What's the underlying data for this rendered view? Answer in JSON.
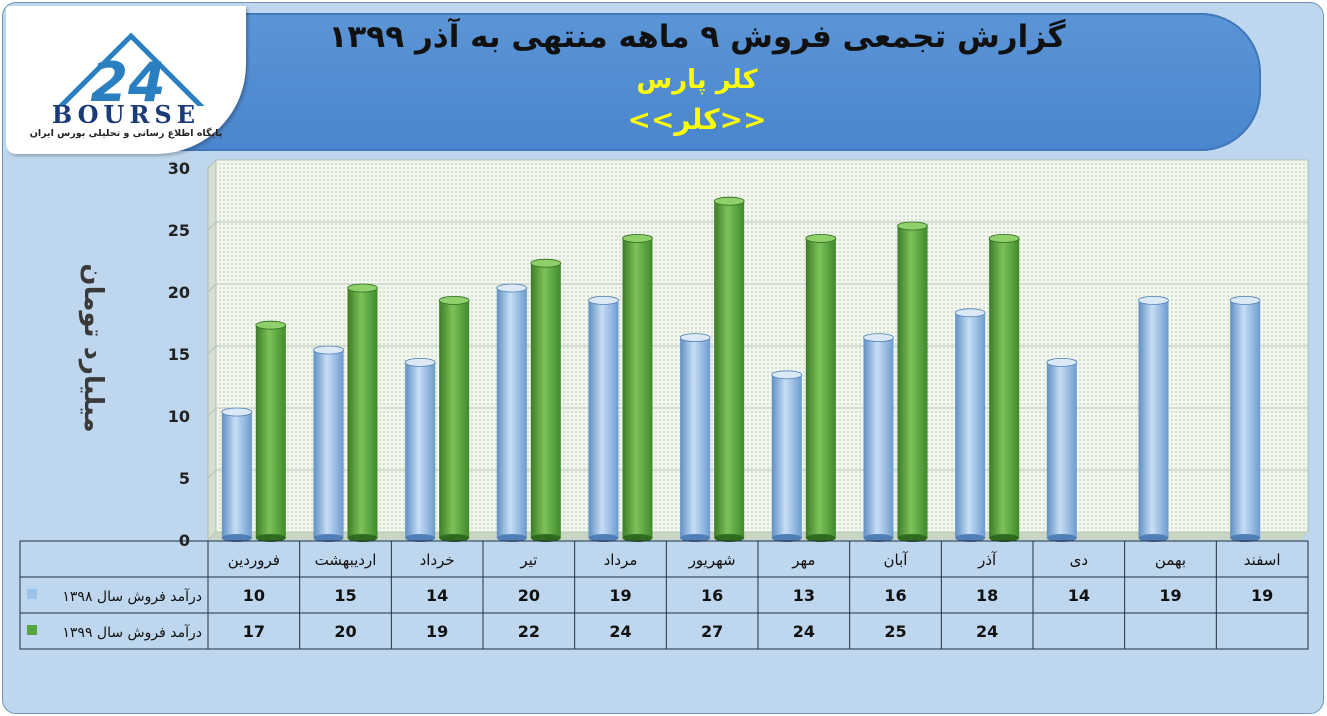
{
  "header": {
    "title": "گزارش تجمعی فروش ۹ ماهه منتهی به آذر ۱۳۹۹",
    "company": "کلر پارس",
    "symbol": "<<کلر>>"
  },
  "logo": {
    "word": "BOURSE",
    "mark": "24",
    "subtitle": "پایگاه اطلاع رسانی و تحلیلی بورس ایران"
  },
  "colors": {
    "series_1398": "#9cc3ea",
    "series_1399": "#58a640",
    "title_band": "#5b95d6",
    "title_highlight": "#ffff00",
    "frame": "#bfd7ee"
  },
  "chart_data": {
    "type": "bar",
    "title": "گزارش تجمعی فروش ۹ ماهه منتهی به آذر ۱۳۹۹",
    "xlabel": "",
    "ylabel": "میلیارد تومان",
    "ylim": [
      0,
      30
    ],
    "yticks": [
      "0",
      "5",
      "10",
      "15",
      "20",
      "25",
      "30"
    ],
    "grid": true,
    "legend": "data-table-left",
    "categories": [
      "فروردین",
      "اردیبهشت",
      "خرداد",
      "تیر",
      "مرداد",
      "شهریور",
      "مهر",
      "آبان",
      "آذر",
      "دی",
      "بهمن",
      "اسفند"
    ],
    "series": [
      {
        "name": "درآمد فروش سال ۱۳۹۸",
        "values": [
          10,
          15,
          14,
          20,
          19,
          16,
          13,
          16,
          18,
          14,
          19,
          19
        ]
      },
      {
        "name": "درآمد فروش سال ۱۳۹۹",
        "values": [
          17,
          20,
          19,
          22,
          24,
          27,
          24,
          25,
          24,
          null,
          null,
          null
        ]
      }
    ]
  }
}
